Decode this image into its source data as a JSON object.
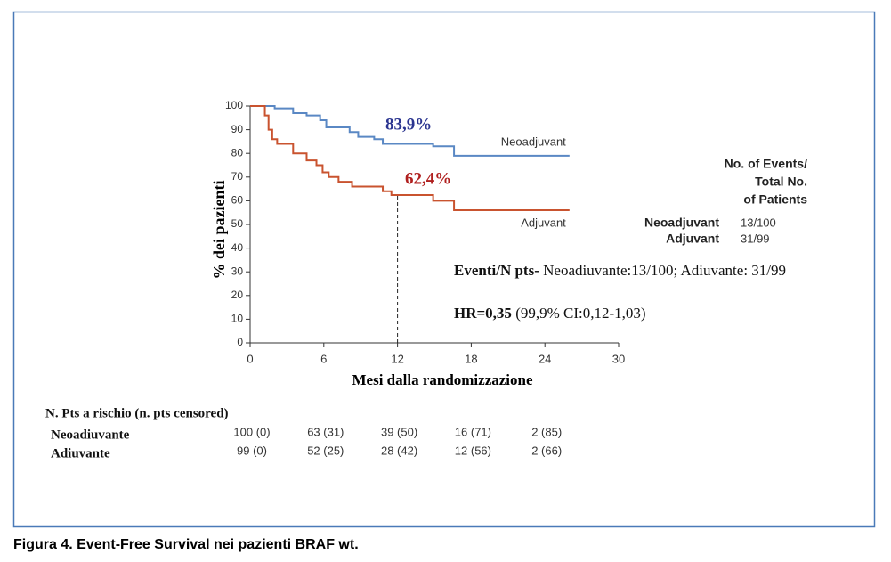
{
  "chart_data": {
    "type": "line",
    "x_label": "Mesi dalla randomizzazione",
    "y_label": "% dei pazienti",
    "xlim": [
      0,
      30
    ],
    "xticks": [
      0,
      6,
      12,
      18,
      24,
      30
    ],
    "ylim": [
      0,
      100
    ],
    "yticks": [
      0,
      10,
      20,
      30,
      40,
      50,
      60,
      70,
      80,
      90,
      100
    ],
    "vline": 12,
    "series": [
      {
        "name": "Neoadjuvant",
        "color": "#5a88c4",
        "x": [
          0,
          2,
          2,
          3.5,
          3.5,
          4.6,
          4.6,
          5.7,
          5.7,
          6.2,
          6.2,
          8.1,
          8.1,
          8.8,
          8.8,
          10.1,
          10.1,
          10.8,
          10.8,
          14.9,
          14.9,
          16.6,
          16.6,
          26
        ],
        "values": [
          100,
          100,
          99,
          99,
          97,
          97,
          96,
          96,
          94,
          94,
          91,
          91,
          89,
          89,
          87,
          87,
          86,
          86,
          84,
          84,
          83,
          83,
          79,
          79
        ]
      },
      {
        "name": "Adjuvant",
        "color": "#c9532f",
        "x": [
          0,
          1.2,
          1.2,
          1.5,
          1.5,
          1.8,
          1.8,
          2.2,
          2.2,
          3.5,
          3.5,
          4.6,
          4.6,
          5.4,
          5.4,
          5.9,
          5.9,
          6.4,
          6.4,
          7.2,
          7.2,
          8.3,
          8.3,
          10.8,
          10.8,
          11.5,
          11.5,
          14.9,
          14.9,
          16.6,
          16.6,
          26
        ],
        "values": [
          100,
          100,
          96,
          96,
          90,
          90,
          86,
          86,
          84,
          84,
          80,
          80,
          77,
          77,
          75,
          75,
          72,
          72,
          70,
          70,
          68,
          68,
          66,
          66,
          64,
          64,
          62.4,
          62.4,
          60,
          60,
          56,
          56
        ]
      }
    ],
    "annotations": [
      {
        "text": "83,9%",
        "color": "#2b3590"
      },
      {
        "text": "62,4%",
        "color": "#b0201f"
      }
    ],
    "events_table": {
      "header": [
        "No. of Events/",
        "Total No.",
        "of Patients"
      ],
      "rows": [
        [
          "Neoadjuvant",
          "13/100"
        ],
        [
          "Adjuvant",
          "31/99"
        ]
      ]
    },
    "notes": [
      {
        "bold": "Eventi/N pts-",
        "text": " Neoadiuvante:13/100; Adiuvante: 31/99"
      },
      {
        "bold": "HR=0,35",
        "text": " (99,9% CI:0,12-1,03)"
      }
    ],
    "risk_table": {
      "title": "N. Pts a rischio (n. pts censored)",
      "rows": [
        {
          "name": "Neoadiuvante",
          "values": [
            "100 (0)",
            "63 (31)",
            "39 (50)",
            "16 (71)",
            "2 (85)"
          ]
        },
        {
          "name": "Adiuvante",
          "values": [
            "99 (0)",
            "52 (25)",
            "28 (42)",
            "12 (56)",
            "2 (66)"
          ]
        }
      ]
    },
    "caption": "Figura 4. Event-Free Survival nei pazienti BRAF wt."
  }
}
